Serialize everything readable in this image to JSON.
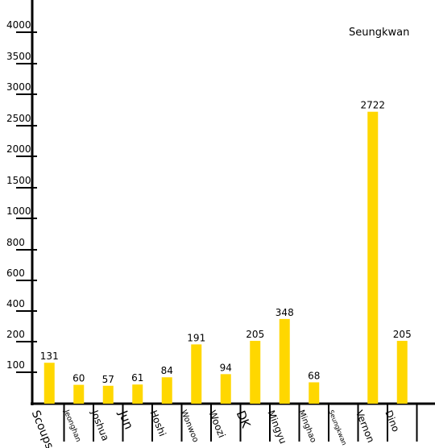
{
  "chart_data": {
    "type": "bar",
    "legend": {
      "label": "Seungkwan",
      "position": "top-right"
    },
    "bar_color": "#FFD700",
    "y_ticks": [
      {
        "label": "100",
        "value": 100
      },
      {
        "label": "200",
        "value": 200
      },
      {
        "label": "400",
        "value": 400
      },
      {
        "label": "600",
        "value": 600
      },
      {
        "label": "800",
        "value": 800
      },
      {
        "label": "1000",
        "value": 1000
      },
      {
        "label": "1500",
        "value": 1500
      },
      {
        "label": "2000",
        "value": 2000
      },
      {
        "label": "2500",
        "value": 2500
      },
      {
        "label": "3000",
        "value": 3000
      },
      {
        "label": "3500",
        "value": 3500
      },
      {
        "label": "4000",
        "value": 4000
      }
    ],
    "categories": [
      "Scoups",
      "Jeonghan",
      "Joshua",
      "Jun",
      "Hoshi",
      "Wonwoo",
      "Woozi",
      "DK",
      "Mingyu",
      "Minghao",
      "Seungkwan",
      "Vernon",
      "Dino"
    ],
    "values": [
      131,
      60,
      57,
      61,
      84,
      191,
      94,
      205,
      348,
      68,
      null,
      2722,
      205
    ],
    "data_labels": [
      "131",
      "60",
      "57",
      "61",
      "84",
      "191",
      "94",
      "205",
      "348",
      "68",
      "",
      "2722",
      "205"
    ]
  }
}
